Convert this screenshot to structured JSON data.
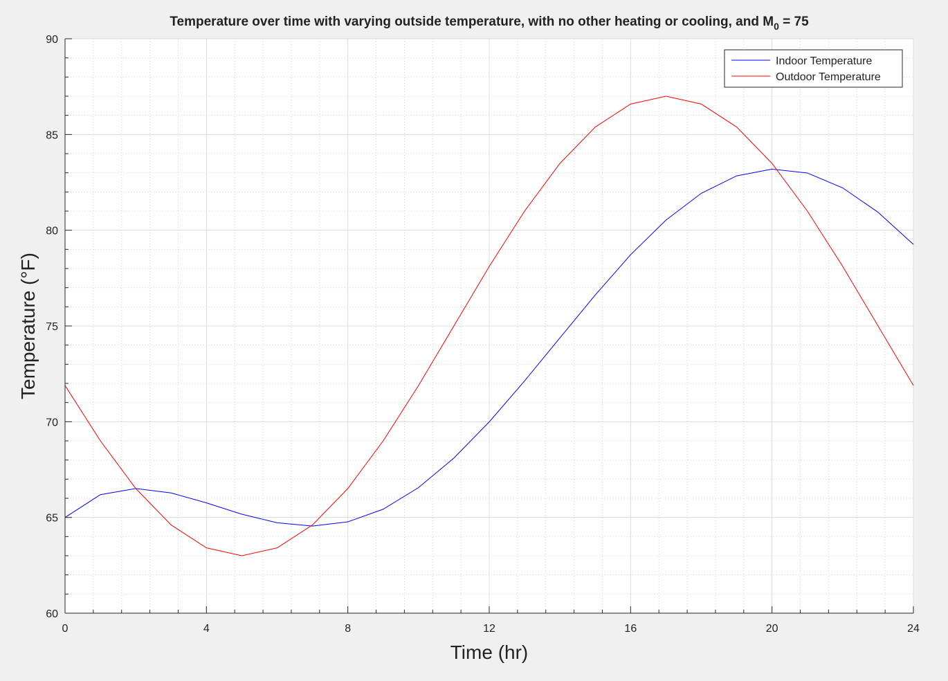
{
  "chart_data": {
    "type": "line",
    "title": "Temperature over time with varying outside temperature, with no other heating or cooling, and M",
    "title_subscript": "0",
    "title_suffix": " = 75",
    "x_label": "Time (hr)",
    "y_label": "Temperature (°F)",
    "x": [
      0,
      1,
      2,
      3,
      4,
      5,
      6,
      7,
      8,
      9,
      10,
      11,
      12,
      13,
      14,
      15,
      16,
      17,
      18,
      19,
      20,
      21,
      22,
      23,
      24
    ],
    "series": [
      {
        "name": "Indoor Temperature",
        "color": "#0000ff",
        "values": [
          65.0,
          66.19,
          66.51,
          66.28,
          65.76,
          65.17,
          64.72,
          64.55,
          64.77,
          65.43,
          66.56,
          68.1,
          69.99,
          72.13,
          74.38,
          76.62,
          78.72,
          80.53,
          81.93,
          82.84,
          83.19,
          82.99,
          82.21,
          80.94,
          79.26
        ]
      },
      {
        "name": "Outdoor Temperature",
        "color": "#ff0000",
        "values": [
          71.89,
          69.0,
          66.51,
          64.61,
          63.41,
          63.0,
          63.41,
          64.61,
          66.51,
          69.0,
          71.89,
          75.0,
          78.11,
          81.0,
          83.49,
          85.39,
          86.59,
          87.0,
          86.59,
          85.39,
          83.49,
          81.0,
          78.11,
          75.0,
          71.89
        ]
      }
    ],
    "xlim": [
      0,
      24
    ],
    "xticks": [
      0,
      4,
      8,
      12,
      16,
      20,
      24
    ],
    "ylim": [
      60,
      90
    ],
    "yticks": [
      60,
      65,
      70,
      75,
      80,
      85,
      90
    ],
    "grid": true,
    "minor_grid": true,
    "legend": "upper right"
  }
}
